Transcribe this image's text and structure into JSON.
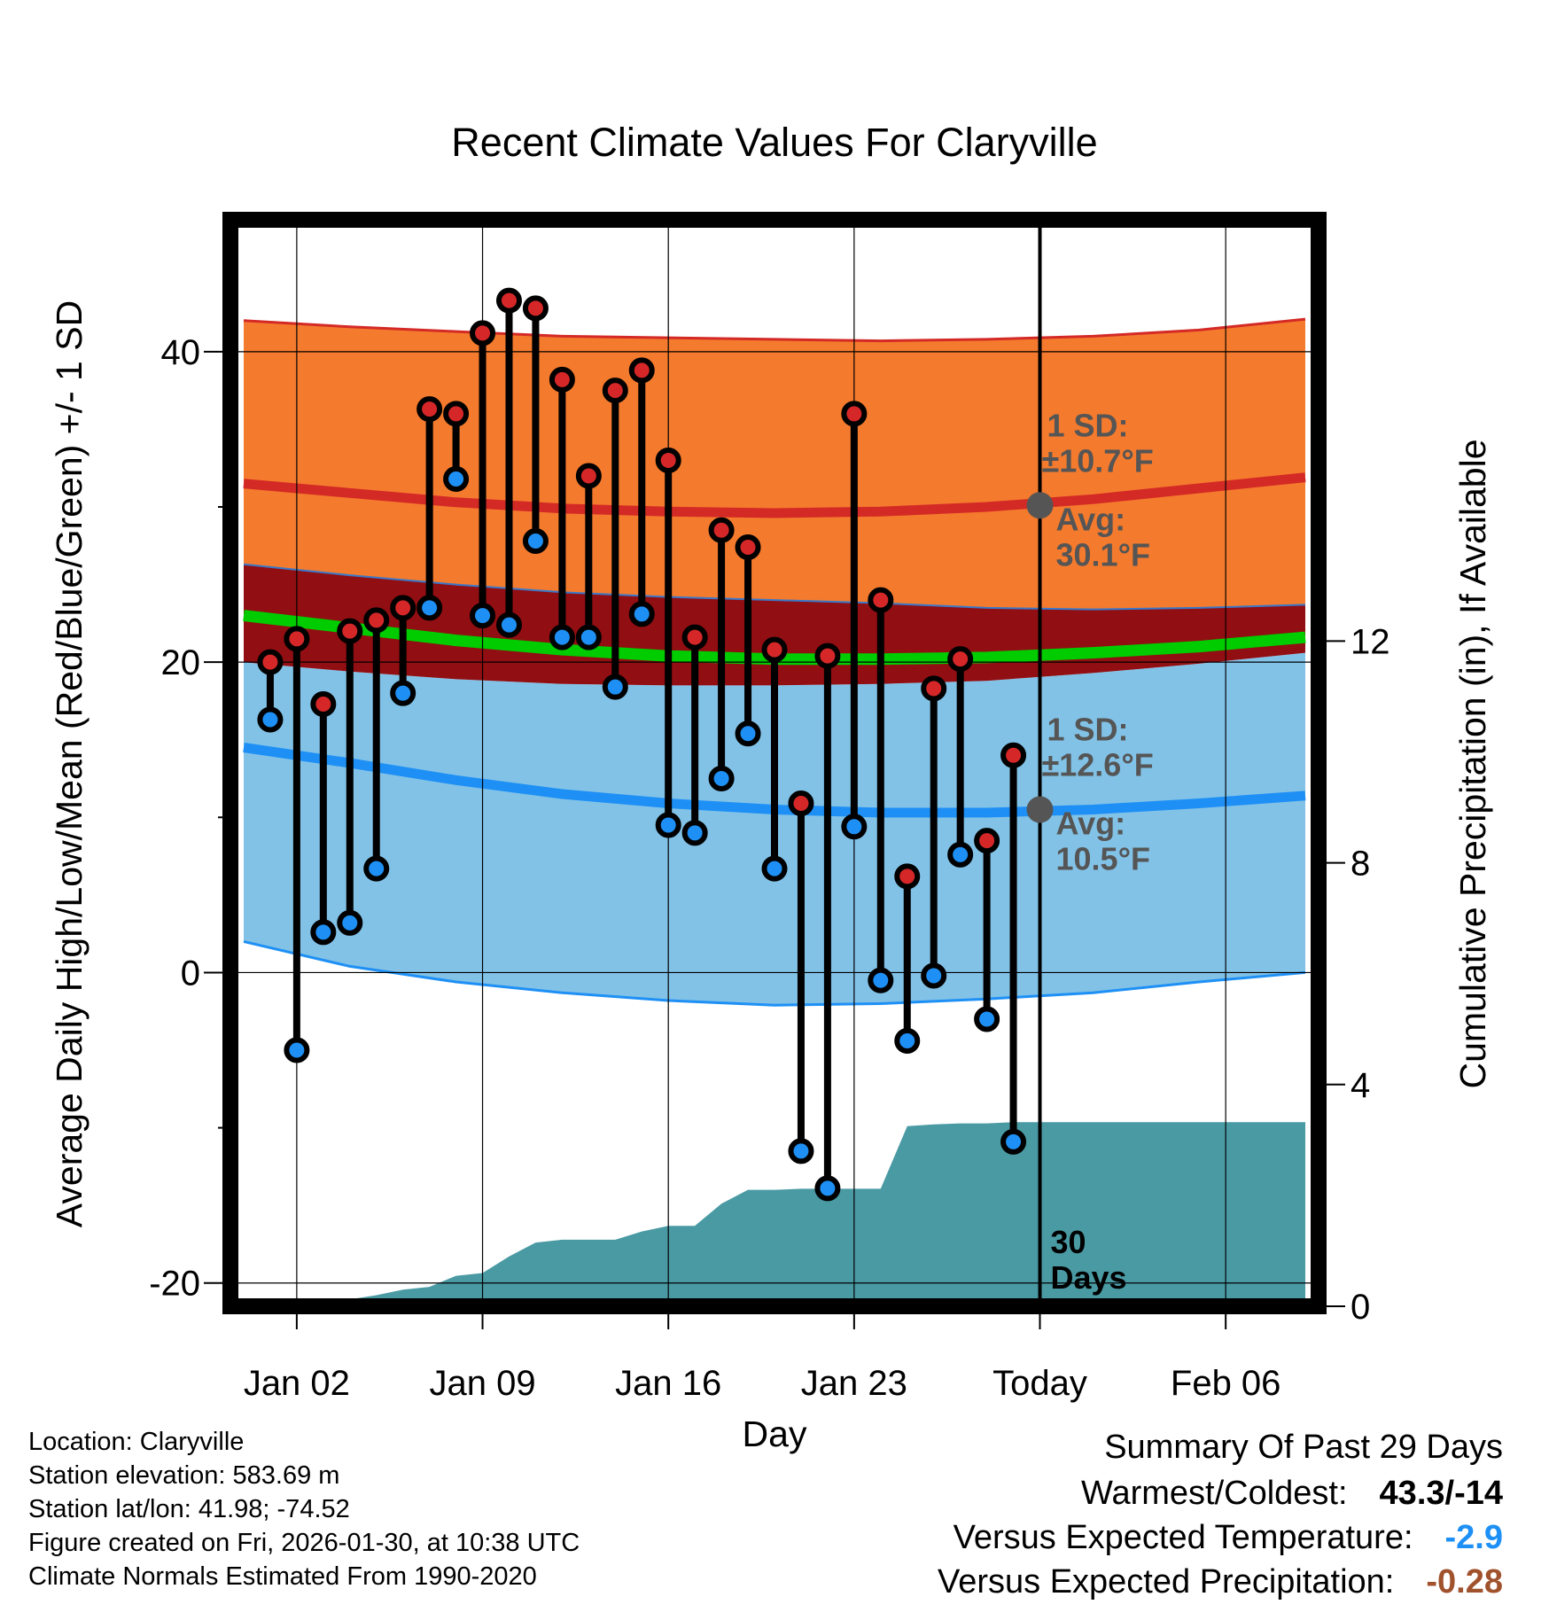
{
  "chart_data": {
    "type": "line",
    "title": "Recent Climate Values For Claryville",
    "xlabel": "Day",
    "ylabel": "Average Daily High/Low/Mean (Red/Blue/Green) +/- 1 SD",
    "y2label": "Cumulative Precipitation (in), If Available",
    "x_tick_labels": [
      "Jan 02",
      "Jan 09",
      "Jan 16",
      "Jan 23",
      "Today",
      "Feb 06"
    ],
    "x_tick_day": [
      2,
      9,
      16,
      23,
      30,
      37
    ],
    "xlim": [
      -0.5,
      40.5
    ],
    "today_day": 30,
    "ylim": [
      -21.5,
      48.5
    ],
    "y_ticks": [
      -20,
      0,
      20,
      40
    ],
    "y2_ticks": [
      0,
      4,
      8,
      12
    ],
    "y2_per_temp_unit": 0.28,
    "colors": {
      "high_band": "#f47a2d",
      "high_avg": "#d42a26",
      "low_band": "#82c2e7",
      "low_avg": "#1e90f5",
      "overlap": "#910e12",
      "mean_avg": "#00cc00",
      "precip": "#4a9aa4",
      "high_marker": "#d62728",
      "low_marker": "#1e90f5",
      "annot": "#555555",
      "cold_value": "#1e90f5",
      "dry_value": "#a0522d"
    },
    "climatology_days": [
      0,
      4,
      8,
      12,
      16,
      20,
      24,
      28,
      32,
      36,
      40
    ],
    "normal_high_avg": [
      31.5,
      30.9,
      30.3,
      29.9,
      29.7,
      29.6,
      29.7,
      30.0,
      30.5,
      31.2,
      31.9
    ],
    "normal_high_lower": [
      26.3,
      25.6,
      25.0,
      24.5,
      24.2,
      24.0,
      23.8,
      23.5,
      23.4,
      23.5,
      23.7
    ],
    "normal_high_upper": [
      42.0,
      41.6,
      41.3,
      41.0,
      40.9,
      40.8,
      40.7,
      40.8,
      41.0,
      41.4,
      42.1
    ],
    "normal_low_avg": [
      14.5,
      13.5,
      12.4,
      11.5,
      10.9,
      10.5,
      10.3,
      10.3,
      10.5,
      10.9,
      11.4
    ],
    "normal_low_lower": [
      2.0,
      0.4,
      -0.6,
      -1.3,
      -1.8,
      -2.1,
      -2.0,
      -1.7,
      -1.3,
      -0.6,
      0.0
    ],
    "normal_low_upper": [
      20.0,
      19.4,
      18.9,
      18.6,
      18.5,
      18.5,
      18.6,
      18.8,
      19.3,
      19.9,
      20.6
    ],
    "normal_mean_avg": [
      23.0,
      22.2,
      21.4,
      20.8,
      20.4,
      20.2,
      20.2,
      20.3,
      20.6,
      21.0,
      21.6
    ],
    "observed": {
      "days": [
        1,
        2,
        3,
        4,
        5,
        6,
        7,
        8,
        9,
        10,
        11,
        12,
        13,
        14,
        15,
        16,
        17,
        18,
        19,
        20,
        21,
        22,
        23,
        24,
        25,
        26,
        27,
        28,
        29
      ],
      "high": [
        20.0,
        21.5,
        17.3,
        22.0,
        22.7,
        23.5,
        36.3,
        36.0,
        41.2,
        43.3,
        42.8,
        38.2,
        32.0,
        37.5,
        38.8,
        33.0,
        21.6,
        28.5,
        27.4,
        20.8,
        10.9,
        20.4,
        36.0,
        24.0,
        6.2,
        18.3,
        20.2,
        8.5,
        14.0
      ],
      "low": [
        16.3,
        -5.0,
        2.6,
        3.2,
        6.7,
        18.0,
        23.5,
        31.8,
        23.0,
        22.4,
        27.8,
        21.6,
        21.6,
        18.4,
        23.1,
        9.5,
        9.0,
        12.5,
        15.4,
        6.7,
        -11.5,
        -13.9,
        9.4,
        -0.5,
        -4.4,
        -0.2,
        7.6,
        -3.0,
        -10.9
      ]
    },
    "cumulative_precip": {
      "days": [
        1,
        3,
        5,
        6,
        7,
        8,
        9,
        10,
        11,
        12,
        13,
        14,
        15,
        16,
        17,
        18,
        19,
        20,
        21,
        22,
        23,
        24,
        25,
        26,
        27,
        28,
        29,
        30,
        40
      ],
      "values": [
        0.0,
        0.05,
        0.2,
        0.3,
        0.35,
        0.55,
        0.6,
        0.9,
        1.15,
        1.2,
        1.2,
        1.2,
        1.35,
        1.45,
        1.45,
        1.85,
        2.1,
        2.1,
        2.12,
        2.12,
        2.12,
        2.12,
        3.25,
        3.28,
        3.3,
        3.3,
        3.32,
        3.32,
        3.32
      ]
    },
    "annotations": {
      "high_sd_title": "1 SD:",
      "high_sd_value": "±10.7°F",
      "high_avg_title": "Avg:",
      "high_avg_value": "30.1°F",
      "low_sd_title": "1 SD:",
      "low_sd_value": "±12.6°F",
      "low_avg_title": "Avg:",
      "low_avg_value": "10.5°F",
      "window_number": "30",
      "window_unit": "Days"
    }
  },
  "footer": {
    "location": "Location: Claryville",
    "elevation": "Station elevation: 583.69 m",
    "latlon": "Station lat/lon: 41.98; -74.52",
    "created": "Figure created on Fri, 2026-01-30, at 10:38 UTC",
    "normals": "Climate Normals Estimated From 1990-2020"
  },
  "summary": {
    "heading": "Summary Of Past 29 Days",
    "extremes_label": "Warmest/Coldest:",
    "extremes_value": "43.3/-14",
    "temp_label": "Versus Expected Temperature:",
    "temp_value": "-2.9",
    "precip_label": "Versus Expected Precipitation:",
    "precip_value": "-0.28"
  }
}
